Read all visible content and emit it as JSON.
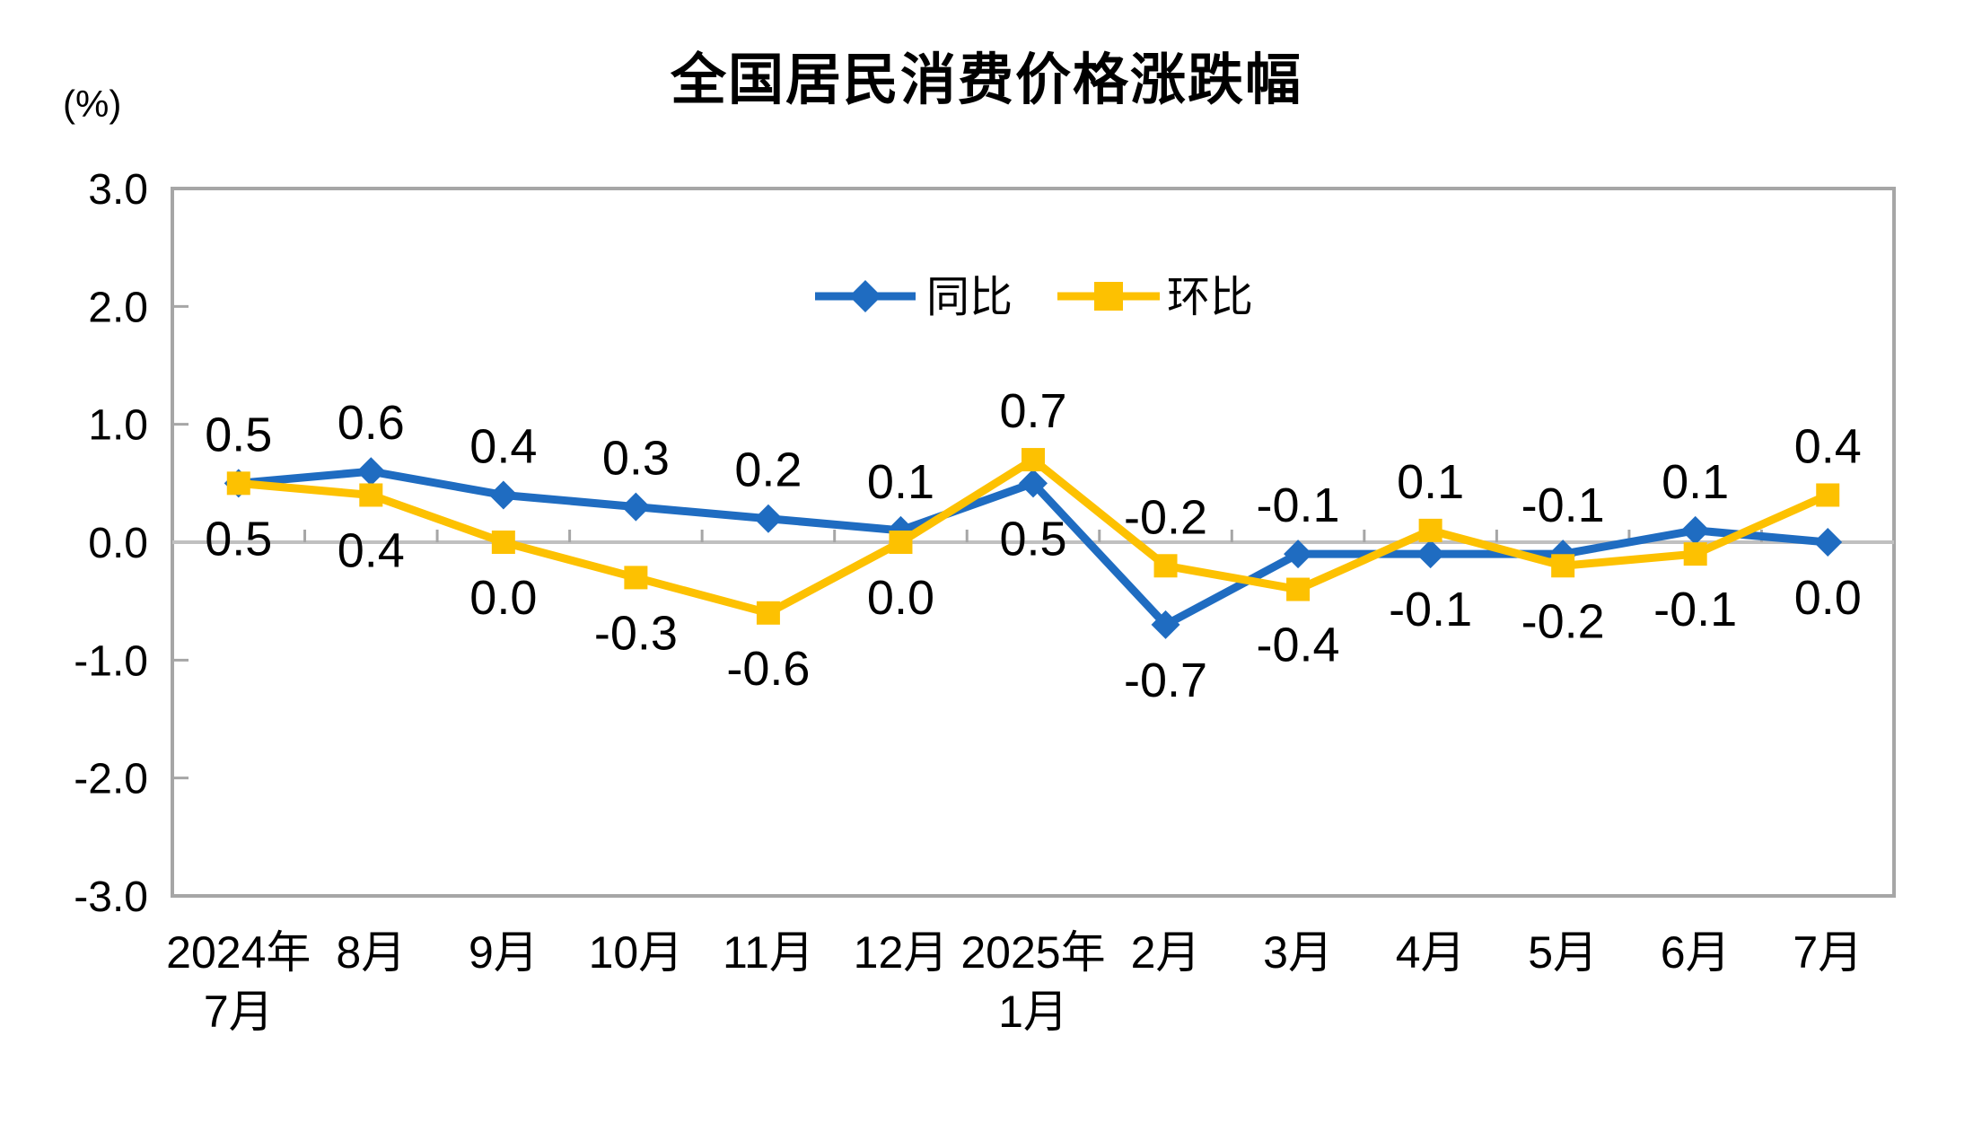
{
  "header": {
    "title": "全国居民消费价格涨跌幅",
    "unit_label": "(%)"
  },
  "chart_data": {
    "type": "line",
    "title": "全国居民消费价格涨跌幅",
    "unit": "(%)",
    "categories": [
      "2024年\n7月",
      "8月",
      "9月",
      "10月",
      "11月",
      "12月",
      "2025年\n1月",
      "2月",
      "3月",
      "4月",
      "5月",
      "6月",
      "7月"
    ],
    "series": [
      {
        "name": "同比",
        "marker": "diamond",
        "color": "#1F6CC1",
        "values": [
          0.5,
          0.6,
          0.4,
          0.3,
          0.2,
          0.1,
          0.5,
          -0.7,
          -0.1,
          -0.1,
          -0.1,
          0.1,
          0.0
        ],
        "labels": [
          "0.5",
          "0.6",
          "0.4",
          "0.3",
          "0.2",
          "0.1",
          "0.5",
          "-0.7",
          "-0.1",
          "-0.1",
          "-0.1",
          "0.1",
          "0.0"
        ]
      },
      {
        "name": "环比",
        "marker": "square",
        "color": "#FDC101",
        "values": [
          0.5,
          0.4,
          0.0,
          -0.3,
          -0.6,
          0.0,
          0.7,
          -0.2,
          -0.4,
          0.1,
          -0.2,
          -0.1,
          0.4
        ],
        "labels": [
          "0.5",
          "0.4",
          "0.0",
          "-0.3",
          "-0.6",
          "0.0",
          "0.7",
          "-0.2",
          "-0.4",
          "0.1",
          "-0.2",
          "-0.1",
          "0.4"
        ]
      }
    ],
    "y_axis": {
      "min": -3.0,
      "max": 3.0,
      "step": 1.0,
      "tick_labels": [
        "3.0",
        "2.0",
        "1.0",
        "0.0",
        "-1.0",
        "-2.0",
        "-3.0"
      ]
    },
    "grid": "zero-line-only",
    "legend_position": "top-center-inside",
    "data_label_rule": "higher series labeled above point, lower series labeled below point"
  },
  "style_colors": {
    "frame": "#A6A6A6",
    "zero_line": "#C0C0C0",
    "tick": "#A6A6A6",
    "text": "#000000",
    "background": "#FFFFFF"
  }
}
